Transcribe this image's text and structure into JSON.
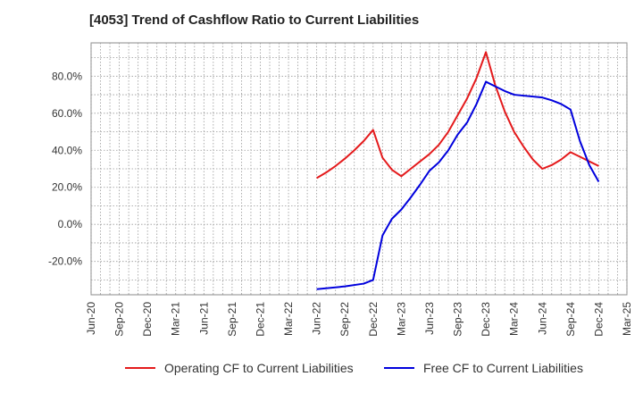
{
  "title": "[4053]  Trend of Cashflow Ratio to Current Liabilities",
  "chart_data": {
    "type": "line",
    "title": "[4053]  Trend of Cashflow Ratio to Current Liabilities",
    "xlabel": "",
    "ylabel": "",
    "x_ticks": [
      "Jun-20",
      "Sep-20",
      "Dec-20",
      "Mar-21",
      "Jun-21",
      "Sep-21",
      "Dec-21",
      "Mar-22",
      "Jun-22",
      "Sep-22",
      "Dec-22",
      "Mar-23",
      "Jun-23",
      "Sep-23",
      "Dec-23",
      "Mar-24",
      "Jun-24",
      "Sep-24",
      "Dec-24",
      "Mar-25"
    ],
    "y_ticks": [
      "-20.0%",
      "0.0%",
      "20.0%",
      "40.0%",
      "60.0%",
      "80.0%"
    ],
    "y_tick_values": [
      -20,
      0,
      20,
      40,
      60,
      80
    ],
    "ylim": [
      -38,
      98
    ],
    "grid": true,
    "legend_position": "bottom",
    "x": [
      "2022-06",
      "2022-07",
      "2022-08",
      "2022-09",
      "2022-10",
      "2022-11",
      "2022-12",
      "2023-01",
      "2023-02",
      "2023-03",
      "2023-04",
      "2023-05",
      "2023-06",
      "2023-07",
      "2023-08",
      "2023-09",
      "2023-10",
      "2023-11",
      "2023-12",
      "2024-01",
      "2024-02",
      "2024-03",
      "2024-04",
      "2024-05",
      "2024-06",
      "2024-07",
      "2024-08",
      "2024-09",
      "2024-10",
      "2024-11",
      "2024-12"
    ],
    "series": [
      {
        "name": "Operating CF to Current Liabilities",
        "color": "#e41a1c",
        "values": [
          25,
          28,
          31.5,
          35.5,
          40,
          45,
          51,
          36,
          29.5,
          26,
          30,
          34,
          38,
          43,
          50,
          59,
          68,
          79,
          93,
          75,
          61,
          50,
          42,
          35,
          30,
          32,
          35,
          39,
          36.5,
          34,
          31.5
        ]
      },
      {
        "name": "Free CF to Current Liabilities",
        "color": "#0000dd",
        "values": [
          -35,
          null,
          null,
          -33.5,
          null,
          -32,
          -30,
          -6,
          3,
          8,
          14.5,
          21.5,
          29,
          33.5,
          40,
          48.5,
          55,
          65,
          77,
          74.5,
          72,
          70,
          null,
          null,
          68.5,
          67,
          65,
          62,
          45,
          32,
          23
        ]
      }
    ]
  }
}
